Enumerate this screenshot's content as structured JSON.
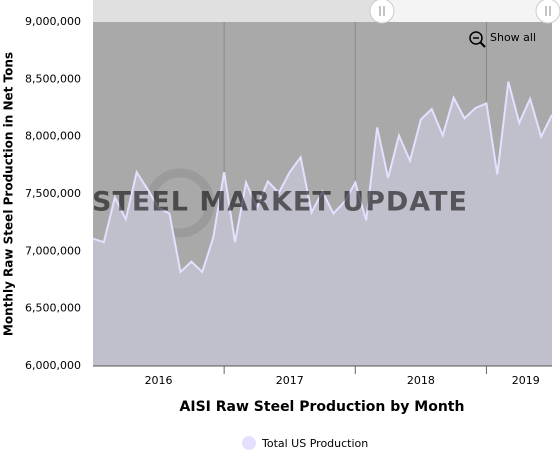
{
  "chart_data": {
    "type": "area",
    "y_axis_label": "Monthly Raw Steel Production in Net Tons",
    "x_axis_label": "AISI Raw Steel Production by Month",
    "button": "Show all",
    "watermark": "STEEL MARKET UPDATE",
    "x": [
      2016,
      2016.083,
      2016.167,
      2016.25,
      2016.333,
      2016.417,
      2016.5,
      2016.583,
      2016.667,
      2016.75,
      2016.833,
      2016.917,
      2017,
      2017.083,
      2017.167,
      2017.25,
      2017.333,
      2017.417,
      2017.5,
      2017.583,
      2017.667,
      2017.75,
      2017.833,
      2017.917,
      2018,
      2018.083,
      2018.167,
      2018.25,
      2018.333,
      2018.417,
      2018.5,
      2018.583,
      2018.667,
      2018.75,
      2018.833,
      2018.917,
      2019,
      2019.083,
      2019.167,
      2019.25,
      2019.333,
      2019.417,
      2019.5
    ],
    "series": [
      {
        "name": "Total US Production",
        "color": "#e4e0ff",
        "fill": "#c0bfcc",
        "values": [
          7110000,
          7080000,
          7470000,
          7280000,
          7690000,
          7540000,
          7380000,
          7330000,
          6820000,
          6910000,
          6820000,
          7120000,
          7690000,
          7080000,
          7600000,
          7380000,
          7610000,
          7510000,
          7690000,
          7820000,
          7340000,
          7520000,
          7330000,
          7430000,
          7600000,
          7270000,
          8080000,
          7640000,
          8010000,
          7790000,
          8150000,
          8240000,
          8010000,
          8340000,
          8160000,
          8250000,
          8290000,
          7670000,
          8480000,
          8120000,
          8330000,
          8000000,
          8190000
        ]
      }
    ],
    "xlim": [
      2016,
      2019.5
    ],
    "xticks": [
      2017,
      2018,
      2019
    ],
    "xtick_labels": [
      {
        "value": 2016.5,
        "label": "2016"
      },
      {
        "value": 2017.5,
        "label": "2017"
      },
      {
        "value": 2018.5,
        "label": "2018"
      },
      {
        "value": 2019.3,
        "label": "2019"
      }
    ],
    "ylim": [
      6000000,
      9000000
    ],
    "yticks": [
      {
        "value": 6000000,
        "label": "6,000,000"
      },
      {
        "value": 6500000,
        "label": "6,500,000"
      },
      {
        "value": 7000000,
        "label": "7,000,000"
      },
      {
        "value": 7500000,
        "label": "7,500,000"
      },
      {
        "value": 8000000,
        "label": "8,000,000"
      },
      {
        "value": 8500000,
        "label": "8,500,000"
      },
      {
        "value": 9000000,
        "label": "9,000,000"
      }
    ],
    "grid": true,
    "plot_background": "#a9a9a9",
    "legend": "bottom"
  }
}
